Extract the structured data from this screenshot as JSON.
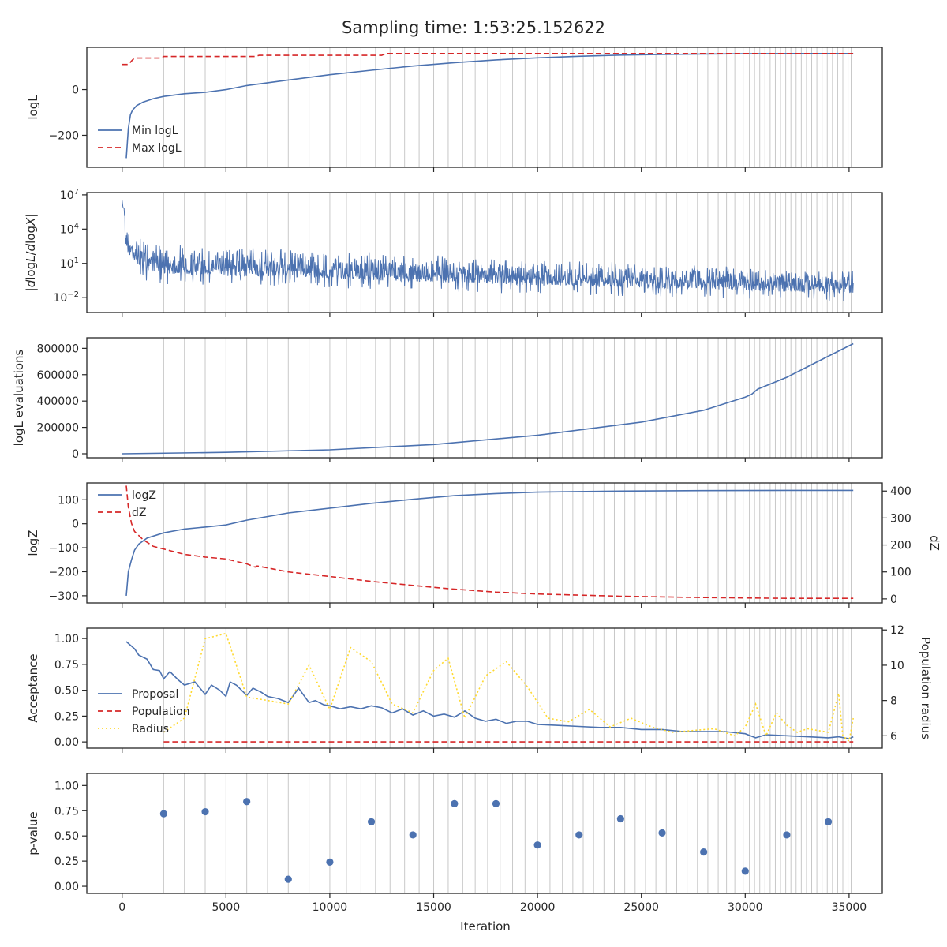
{
  "title": "Sampling time: 1:53:25.152622",
  "x_axis": {
    "label": "Iteration",
    "range": [
      -1700,
      36600
    ],
    "ticks": [
      0,
      5000,
      10000,
      15000,
      20000,
      25000,
      30000,
      35000
    ]
  },
  "insertion_lines": [
    2000,
    3000,
    4000,
    5000,
    6000,
    7000,
    8000,
    9000,
    10000,
    10800,
    11500,
    12200,
    12900,
    13600,
    14300,
    15000,
    15700,
    16400,
    17000,
    17600,
    18200,
    18800,
    19400,
    20000,
    20600,
    21200,
    21700,
    22200,
    22700,
    23200,
    23700,
    24200,
    24700,
    25200,
    25700,
    26200,
    26700,
    27200,
    27700,
    28200,
    28700,
    29100,
    29500,
    29900,
    30200,
    30450,
    30700,
    30950,
    31200,
    31450,
    31700,
    31950,
    32200,
    32450,
    32700,
    32950,
    33200,
    33450,
    33700,
    33950,
    34200,
    34450,
    34700,
    34950,
    35100
  ],
  "colors": {
    "blue": "#4c72b0",
    "red": "#d62728",
    "yellow": "#ffd92f",
    "vline": "#c8c8c8"
  },
  "chart_data": [
    {
      "type": "line",
      "panel": "logL",
      "ylabel": "logL",
      "ylim": [
        -340,
        185
      ],
      "yticks": [
        0,
        -200
      ],
      "ytick_labels": [
        "0",
        "−200"
      ],
      "legend": "lower-left",
      "series": [
        {
          "name": "Min logL",
          "style": "solid",
          "color": "#4c72b0",
          "x": [
            200,
            300,
            400,
            500,
            700,
            1000,
            1500,
            2000,
            3000,
            4000,
            5000,
            6000,
            7000,
            8000,
            10000,
            12000,
            14000,
            16000,
            18000,
            20000,
            22000,
            24000,
            26000,
            28000,
            30000,
            32000,
            35200
          ],
          "y": [
            -300,
            -170,
            -110,
            -90,
            -70,
            -55,
            -40,
            -30,
            -18,
            -12,
            0,
            18,
            30,
            42,
            65,
            85,
            103,
            118,
            130,
            139,
            146,
            151,
            154,
            156,
            157,
            158,
            158
          ]
        },
        {
          "name": "Max logL",
          "style": "dashed",
          "color": "#d62728",
          "x": [
            0,
            300,
            500,
            600,
            1900,
            2000,
            6400,
            6600,
            12500,
            12700,
            35200
          ],
          "y": [
            110,
            110,
            130,
            138,
            138,
            145,
            145,
            150,
            150,
            158,
            158
          ]
        }
      ]
    },
    {
      "type": "line",
      "panel": "dlogL",
      "ylabel": "|dlogL/dlogX|",
      "scale": "log",
      "ylim_exp": [
        -3.3,
        7.2
      ],
      "yticks_exp": [
        7,
        4,
        1,
        -2
      ],
      "ytick_labels": [
        "10^7",
        "10^4",
        "10^1",
        "10^-2"
      ],
      "series": [
        {
          "name": "",
          "style": "noisy",
          "color": "#4c72b0",
          "x": [
            0,
            300,
            1000,
            2000,
            3000,
            5000,
            7000,
            10000,
            15000,
            20000,
            25000,
            30000,
            35200
          ],
          "y_high_exp": [
            6.7,
            4.0,
            3.2,
            2.8,
            2.6,
            2.5,
            2.4,
            2.2,
            1.8,
            1.4,
            1.0,
            0.7,
            0.4
          ],
          "y_low_exp": [
            3.0,
            1.0,
            -0.5,
            -0.8,
            -0.9,
            -1.0,
            -1.0,
            -1.2,
            -1.5,
            -1.7,
            -1.9,
            -2.1,
            -2.3
          ]
        }
      ]
    },
    {
      "type": "line",
      "panel": "evaluations",
      "ylabel": "logL evaluations",
      "ylim": [
        -30000,
        880000
      ],
      "yticks": [
        0,
        200000,
        400000,
        600000,
        800000
      ],
      "ytick_labels": [
        "0",
        "200000",
        "400000",
        "600000",
        "800000"
      ],
      "series": [
        {
          "name": "",
          "style": "solid",
          "color": "#4c72b0",
          "x": [
            0,
            5000,
            10000,
            15000,
            20000,
            25000,
            28000,
            30000,
            30300,
            30600,
            32000,
            34000,
            35200
          ],
          "y": [
            0,
            11000,
            30000,
            70000,
            140000,
            240000,
            330000,
            430000,
            450000,
            490000,
            580000,
            740000,
            835000
          ]
        }
      ]
    },
    {
      "type": "line",
      "panel": "logZ",
      "ylabel": "logZ",
      "ylim": [
        -330,
        170
      ],
      "yticks": [
        100,
        0,
        -100,
        -200,
        -300
      ],
      "ytick_labels": [
        "100",
        "0",
        "−100",
        "−200",
        "−300"
      ],
      "ylabel_right": "dZ",
      "ylim_right": [
        -15,
        430
      ],
      "yticks_right": [
        400,
        300,
        200,
        100,
        0
      ],
      "legend": "upper-left",
      "series": [
        {
          "name": "logZ",
          "style": "solid",
          "color": "#4c72b0",
          "axis": "left",
          "x": [
            200,
            300,
            450,
            600,
            800,
            1200,
            2000,
            3000,
            4000,
            5000,
            6000,
            8000,
            10000,
            12000,
            14000,
            16000,
            18000,
            20000,
            24000,
            28000,
            32000,
            35200
          ],
          "y": [
            -300,
            -200,
            -150,
            -110,
            -85,
            -60,
            -38,
            -22,
            -14,
            -5,
            15,
            45,
            65,
            85,
            102,
            117,
            126,
            132,
            136,
            138,
            139,
            139
          ]
        },
        {
          "name": "dZ",
          "style": "dashed",
          "color": "#d62728",
          "axis": "right",
          "x": [
            200,
            300,
            450,
            600,
            1000,
            1500,
            2000,
            3000,
            4000,
            5000,
            6000,
            6400,
            6500,
            7000,
            8000,
            10000,
            12000,
            14000,
            16000,
            18000,
            20000,
            24000,
            28000,
            32000,
            35200
          ],
          "y": [
            420,
            340,
            280,
            250,
            220,
            195,
            185,
            165,
            155,
            148,
            130,
            118,
            122,
            115,
            100,
            83,
            65,
            50,
            36,
            25,
            18,
            10,
            5,
            2,
            2
          ]
        }
      ]
    },
    {
      "type": "line",
      "panel": "acceptance",
      "ylabel": "Acceptance",
      "ylim": [
        -0.06,
        1.1
      ],
      "yticks": [
        0.0,
        0.25,
        0.5,
        0.75,
        1.0
      ],
      "ytick_labels": [
        "0.00",
        "0.25",
        "0.50",
        "0.75",
        "1.00"
      ],
      "ylabel_right": "Population radius",
      "ylim_right": [
        5.3,
        12.1
      ],
      "yticks_right": [
        6,
        8,
        10,
        12
      ],
      "legend": "lower-left",
      "series": [
        {
          "name": "Proposal",
          "style": "solid",
          "color": "#4c72b0",
          "axis": "left",
          "x": [
            200,
            600,
            800,
            1200,
            1500,
            1800,
            2000,
            2300,
            2700,
            3000,
            3500,
            4000,
            4300,
            4700,
            5000,
            5200,
            5500,
            6000,
            6300,
            6700,
            7000,
            7500,
            8000,
            8500,
            9000,
            9300,
            9700,
            10000,
            10500,
            11000,
            11500,
            12000,
            12500,
            13000,
            13500,
            14000,
            14500,
            15000,
            15500,
            16000,
            16500,
            17000,
            17500,
            18000,
            18500,
            19000,
            19500,
            20000,
            21000,
            22000,
            23000,
            24000,
            25000,
            26000,
            27000,
            28000,
            29000,
            30000,
            30500,
            31000,
            32000,
            33000,
            34000,
            34500,
            35000,
            35200
          ],
          "y": [
            0.97,
            0.9,
            0.84,
            0.8,
            0.7,
            0.69,
            0.61,
            0.68,
            0.6,
            0.55,
            0.58,
            0.46,
            0.55,
            0.5,
            0.44,
            0.58,
            0.55,
            0.45,
            0.52,
            0.48,
            0.44,
            0.42,
            0.38,
            0.52,
            0.38,
            0.4,
            0.36,
            0.35,
            0.32,
            0.34,
            0.32,
            0.35,
            0.33,
            0.28,
            0.32,
            0.26,
            0.3,
            0.25,
            0.27,
            0.24,
            0.3,
            0.23,
            0.2,
            0.22,
            0.18,
            0.2,
            0.2,
            0.17,
            0.16,
            0.15,
            0.14,
            0.14,
            0.12,
            0.12,
            0.1,
            0.1,
            0.1,
            0.08,
            0.04,
            0.07,
            0.06,
            0.05,
            0.04,
            0.05,
            0.03,
            0.05
          ]
        },
        {
          "name": "Population",
          "style": "dashed",
          "color": "#d62728",
          "axis": "left",
          "x": [
            2000,
            35200
          ],
          "y": [
            0.0,
            0.0
          ]
        },
        {
          "name": "Radius",
          "style": "dotted",
          "color": "#ffd92f",
          "axis": "right",
          "x": [
            2000,
            3000,
            4000,
            5000,
            6000,
            7000,
            8000,
            9000,
            10000,
            11000,
            12000,
            13000,
            14000,
            15000,
            15700,
            16500,
            17500,
            18500,
            19500,
            20500,
            21500,
            22500,
            23500,
            24500,
            25500,
            26500,
            27500,
            28500,
            29500,
            30000,
            30500,
            31000,
            31500,
            32000,
            32500,
            33000,
            34000,
            34500,
            34700,
            35000,
            35200
          ],
          "y": [
            6.2,
            7.0,
            11.5,
            11.8,
            8.2,
            8.0,
            7.8,
            10.0,
            7.5,
            11.0,
            10.2,
            7.8,
            7.3,
            9.7,
            10.4,
            7.0,
            9.4,
            10.2,
            8.8,
            7.0,
            6.8,
            7.5,
            6.5,
            7.0,
            6.5,
            6.2,
            6.3,
            6.4,
            6.0,
            6.5,
            7.8,
            6.0,
            7.3,
            6.6,
            6.2,
            6.4,
            6.2,
            8.4,
            6.0,
            5.7,
            7.0
          ]
        }
      ]
    },
    {
      "type": "scatter",
      "panel": "pvalue",
      "ylabel": "p-value",
      "ylim": [
        -0.07,
        1.12
      ],
      "yticks": [
        0.0,
        0.25,
        0.5,
        0.75,
        1.0
      ],
      "ytick_labels": [
        "0.00",
        "0.25",
        "0.50",
        "0.75",
        "1.00"
      ],
      "series": [
        {
          "name": "",
          "style": "points",
          "color": "#4c72b0",
          "x": [
            2000,
            4000,
            6000,
            8000,
            10000,
            12000,
            14000,
            16000,
            18000,
            20000,
            22000,
            24000,
            26000,
            28000,
            30000,
            32000,
            34000
          ],
          "y": [
            0.72,
            0.74,
            0.84,
            0.07,
            0.24,
            0.64,
            0.51,
            0.82,
            0.82,
            0.41,
            0.51,
            0.67,
            0.53,
            0.34,
            0.15,
            0.51,
            0.64
          ]
        }
      ]
    }
  ]
}
